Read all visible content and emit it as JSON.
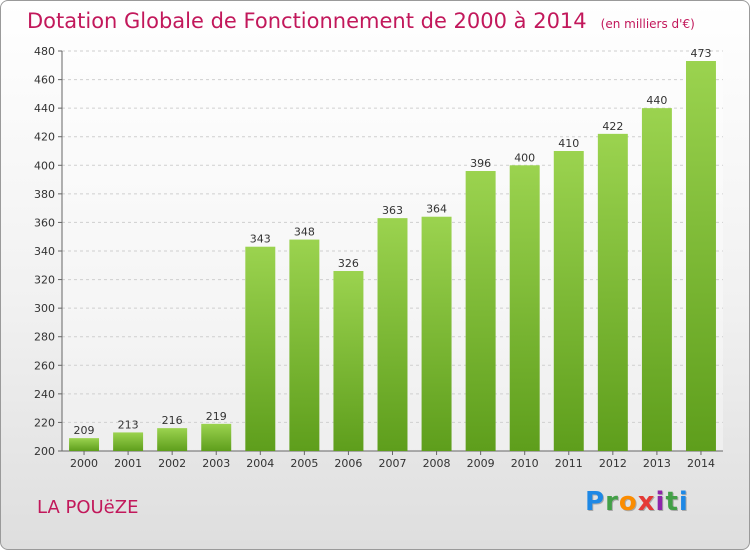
{
  "header": {
    "title": "Dotation Globale de Fonctionnement de 2000 à 2014",
    "subtitle": "(en milliers d'€)"
  },
  "footer": {
    "commune": "LA POUëZE",
    "logo": {
      "letters": [
        "P",
        "r",
        "o",
        "x",
        "i",
        "t",
        "i"
      ],
      "colors": [
        "#1e88e5",
        "#43a047",
        "#fb8c00",
        "#e53935",
        "#8e24aa",
        "#43a047",
        "#1e88e5"
      ]
    }
  },
  "chart_data": {
    "type": "bar",
    "categories": [
      "2000",
      "2001",
      "2002",
      "2003",
      "2004",
      "2005",
      "2006",
      "2007",
      "2008",
      "2009",
      "2010",
      "2011",
      "2012",
      "2013",
      "2014"
    ],
    "values": [
      209,
      213,
      216,
      219,
      343,
      348,
      326,
      363,
      364,
      396,
      400,
      410,
      422,
      440,
      473
    ],
    "ylim": [
      200,
      480
    ],
    "yticks": [
      200,
      220,
      240,
      260,
      280,
      300,
      320,
      340,
      360,
      380,
      400,
      420,
      440,
      460,
      480
    ],
    "grid": true,
    "bar_color": "#7cbf3a"
  }
}
